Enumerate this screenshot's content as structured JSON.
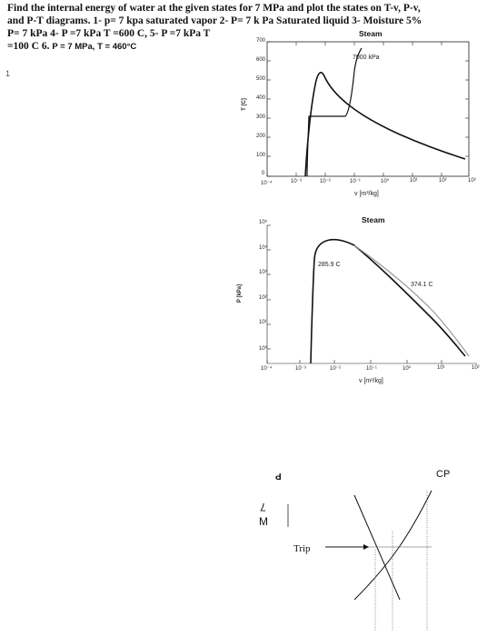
{
  "question": {
    "line1": "Find the internal energy of water at the given states for 7 MPa and plot the states on T-v, P-v,",
    "line2": "and P-T diagrams. 1- p= 7 kpa saturated vapor  2- P= 7 k Pa Saturated liquid 3- Moisture 5%",
    "line3": "P= 7 kPa 4- P =7 kPa T =600 C, 5- P =7 kPa T",
    "line4a": "=100 C 6.",
    "line4b": "P = 7 MPa, T = 460°C"
  },
  "margin_mark": "1",
  "tv_chart": {
    "title": "Steam",
    "ylabel": "T [C]",
    "xlabel": "v [m³/kg]",
    "yticks": [
      "700",
      "600",
      "500",
      "400",
      "300",
      "200",
      "100",
      "0"
    ],
    "xticks": [
      "10⁻⁴",
      "10⁻³",
      "10⁻²",
      "10⁻¹",
      "10⁰",
      "10¹",
      "10²",
      "10³"
    ],
    "annotation": "7000 kPa"
  },
  "pv_chart": {
    "title": "Steam",
    "ylabel": "P [kPa]",
    "xlabel": "v [m³/kg]",
    "yticks": [
      "10⁵",
      "10⁴",
      "10³",
      "10²",
      "10¹",
      "10⁰"
    ],
    "xticks": [
      "10⁻⁴",
      "10⁻³",
      "10⁻²",
      "10⁻¹",
      "10⁰",
      "10¹",
      "10²"
    ],
    "annotation_left": "285.9 C",
    "annotation_right": "374.1 C"
  },
  "pt_sketch": {
    "p_label": "P",
    "m_label_7": "7",
    "m_label_m": "M",
    "trip_label": "Trip",
    "cp_label": "CP"
  }
}
